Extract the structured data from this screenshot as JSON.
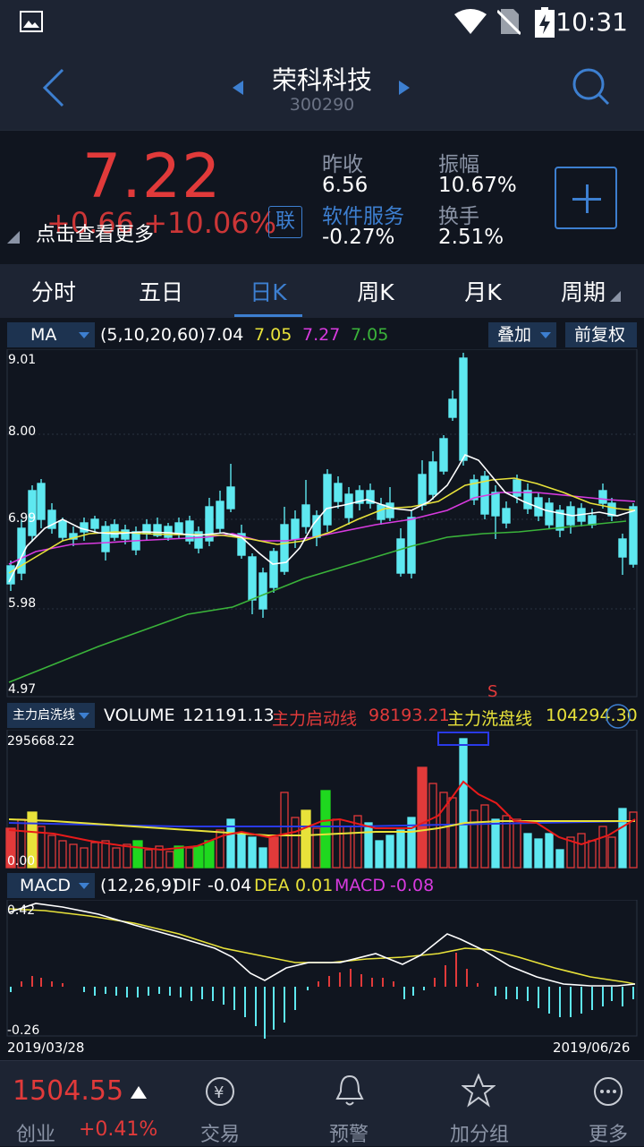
{
  "status": {
    "time": "10:31"
  },
  "header": {
    "title": "荣科科技",
    "code": "300290"
  },
  "quote": {
    "price": "7.22",
    "change": "+0.66  +10.06%",
    "more_label": "点击查看更多",
    "lian": "联",
    "prev_close_label": "昨收",
    "prev_close": "6.56",
    "amplitude_label": "振幅",
    "amplitude": "10.67%",
    "sector_label": "软件服务",
    "sector_change": "-0.27%",
    "turnover_label": "换手",
    "turnover": "2.51%"
  },
  "tabs": [
    "分时",
    "五日",
    "日K",
    "周K",
    "月K",
    "周期"
  ],
  "ma_bar": {
    "indicator": "MA",
    "params": "(5,10,20,60)",
    "ma5": "7.04",
    "ma10": "7.05",
    "ma20": "7.27",
    "ma60": "7.05",
    "overlay": "叠加",
    "adjust": "前复权"
  },
  "kchart": {
    "ticks": [
      "9.01",
      "8.00",
      "6.99",
      "5.98",
      "4.97"
    ],
    "signal": "S"
  },
  "volume_bar": {
    "indicator": "主力启洗线",
    "label": "VOLUME",
    "value": "121191.13",
    "start_label": "主力启动线",
    "start_value": "98193.21",
    "wash_label": "主力洗盘线",
    "wash_value": "104294.30"
  },
  "volchart": {
    "top": "295668.22",
    "bottom": "0.00"
  },
  "macd_bar": {
    "indicator": "MACD",
    "params": "(12,26,9)",
    "dif_label": "DIF",
    "dif": "-0.04",
    "dea_label": "DEA",
    "dea": "0.01",
    "macd_label": "MACD",
    "macd": "-0.08"
  },
  "macdchart": {
    "top": "0.42",
    "bottom": "-0.26",
    "date_start": "2019/03/28",
    "date_end": "2019/06/26"
  },
  "bottom": {
    "index_value": "1504.55",
    "index_name": "创业",
    "index_change": "+0.41%",
    "trade": "交易",
    "alert": "预警",
    "add_group": "加分组",
    "more": "更多"
  },
  "colors": {
    "up": "#e13a3a",
    "down": "#5ee8f0",
    "accent": "#3d7fd0",
    "ma5": "#ffffff",
    "ma10": "#e8e23a",
    "ma20": "#d83adf",
    "ma60": "#3ab33a"
  }
}
